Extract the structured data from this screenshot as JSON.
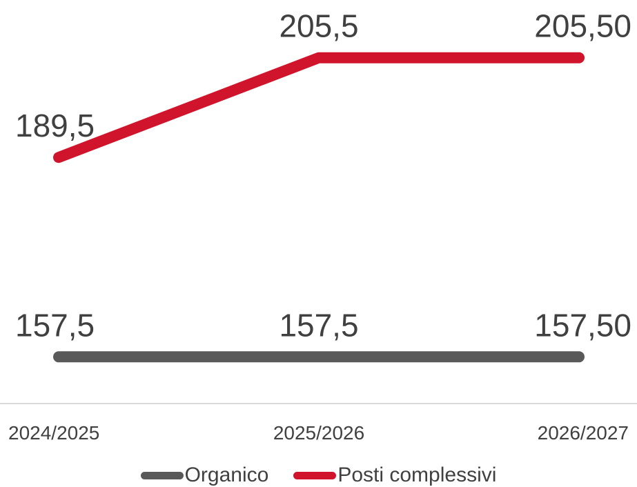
{
  "chart_data": {
    "type": "line",
    "categories": [
      "2024/2025",
      "2025/2026",
      "2026/2027"
    ],
    "series": [
      {
        "name": "Organico",
        "values": [
          157.5,
          157.5,
          157.5
        ],
        "labels": [
          "157,5",
          "157,5",
          "157,50"
        ],
        "color": "#595959"
      },
      {
        "name": "Posti complessivi",
        "values": [
          189.5,
          205.5,
          205.5
        ],
        "labels": [
          "189,5",
          "205,5",
          "205,50"
        ],
        "color": "#d0142c"
      }
    ],
    "ylim": [
      150,
      212
    ],
    "grid": false,
    "legend_position": "bottom",
    "title": "",
    "xlabel": "",
    "ylabel": ""
  }
}
